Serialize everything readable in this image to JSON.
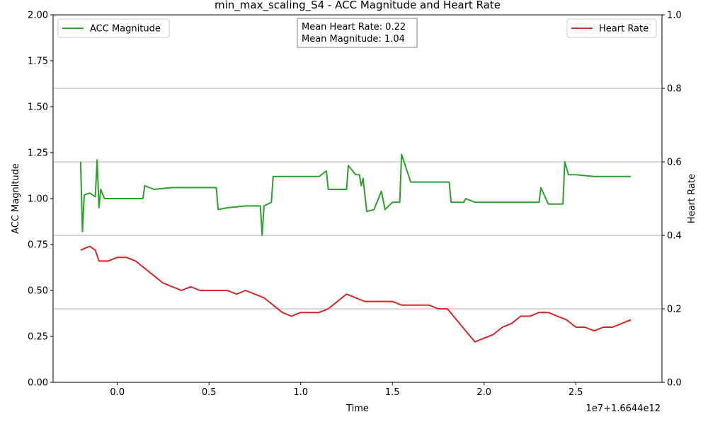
{
  "chart_data": {
    "type": "line",
    "title": "min_max_scaling_S4 - ACC Magnitude and Heart Rate",
    "xlabel": "Time",
    "x_offset_text": "1e7+1.6644e12",
    "ylabel_left": "ACC Magnitude",
    "ylabel_right": "Heart Rate",
    "xlim": [
      -0.35,
      2.97
    ],
    "ylim_left": [
      0.0,
      2.0
    ],
    "ylim_right": [
      0.0,
      1.0
    ],
    "x_ticks": [
      "0.0",
      "0.5",
      "1.0",
      "1.5",
      "2.0",
      "2.5"
    ],
    "y_ticks_left": [
      "0.00",
      "0.25",
      "0.50",
      "0.75",
      "1.00",
      "1.25",
      "1.50",
      "1.75",
      "2.00"
    ],
    "y_ticks_right": [
      "0.0",
      "0.2",
      "0.4",
      "0.6",
      "0.8",
      "1.0"
    ],
    "grid": "right-axis horizontal",
    "legend_left": "top-left",
    "legend_right": "top-right",
    "colors": {
      "acc": "#2ca02c",
      "hr": "#d62728"
    },
    "stats": {
      "mean_hr": "Mean Heart Rate: 0.22",
      "mean_mag": "Mean Magnitude: 1.04"
    },
    "series": [
      {
        "name": "ACC Magnitude",
        "axis": "left",
        "x": [
          -0.2,
          -0.19,
          -0.18,
          -0.15,
          -0.12,
          -0.11,
          -0.1,
          -0.09,
          -0.07,
          0.0,
          0.14,
          0.15,
          0.2,
          0.3,
          0.4,
          0.54,
          0.55,
          0.6,
          0.7,
          0.78,
          0.79,
          0.8,
          0.84,
          0.85,
          0.9,
          1.0,
          1.1,
          1.14,
          1.15,
          1.2,
          1.25,
          1.26,
          1.3,
          1.32,
          1.33,
          1.34,
          1.36,
          1.4,
          1.44,
          1.46,
          1.5,
          1.54,
          1.55,
          1.6,
          1.7,
          1.81,
          1.82,
          1.85,
          1.89,
          1.9,
          1.95,
          2.0,
          2.1,
          2.2,
          2.3,
          2.31,
          2.35,
          2.4,
          2.43,
          2.44,
          2.46,
          2.5,
          2.6,
          2.7,
          2.8
        ],
        "values": [
          1.2,
          0.82,
          1.02,
          1.03,
          1.01,
          1.21,
          0.95,
          1.05,
          1.0,
          1.0,
          1.0,
          1.07,
          1.05,
          1.06,
          1.06,
          1.06,
          0.94,
          0.95,
          0.96,
          0.96,
          0.8,
          0.96,
          0.98,
          1.12,
          1.12,
          1.12,
          1.12,
          1.15,
          1.05,
          1.05,
          1.05,
          1.18,
          1.13,
          1.13,
          1.07,
          1.11,
          0.93,
          0.94,
          1.04,
          0.94,
          0.98,
          0.98,
          1.24,
          1.09,
          1.09,
          1.09,
          0.98,
          0.98,
          0.98,
          1.0,
          0.98,
          0.98,
          0.98,
          0.98,
          0.98,
          1.06,
          0.97,
          0.97,
          0.97,
          1.2,
          1.13,
          1.13,
          1.12,
          1.12,
          1.12
        ]
      },
      {
        "name": "Heart Rate",
        "axis": "right",
        "x": [
          -0.2,
          -0.15,
          -0.12,
          -0.1,
          -0.05,
          0.0,
          0.05,
          0.1,
          0.15,
          0.2,
          0.25,
          0.3,
          0.35,
          0.4,
          0.45,
          0.5,
          0.55,
          0.6,
          0.65,
          0.7,
          0.75,
          0.8,
          0.85,
          0.9,
          0.95,
          1.0,
          1.05,
          1.1,
          1.15,
          1.2,
          1.25,
          1.3,
          1.35,
          1.4,
          1.45,
          1.5,
          1.55,
          1.6,
          1.65,
          1.7,
          1.75,
          1.8,
          1.85,
          1.9,
          1.95,
          2.0,
          2.05,
          2.1,
          2.15,
          2.2,
          2.25,
          2.3,
          2.35,
          2.4,
          2.45,
          2.5,
          2.55,
          2.6,
          2.65,
          2.7,
          2.75,
          2.8
        ],
        "values": [
          0.36,
          0.37,
          0.36,
          0.33,
          0.33,
          0.34,
          0.34,
          0.33,
          0.31,
          0.29,
          0.27,
          0.26,
          0.25,
          0.26,
          0.25,
          0.25,
          0.25,
          0.25,
          0.24,
          0.25,
          0.24,
          0.23,
          0.21,
          0.19,
          0.18,
          0.19,
          0.19,
          0.19,
          0.2,
          0.22,
          0.24,
          0.23,
          0.22,
          0.22,
          0.22,
          0.22,
          0.21,
          0.21,
          0.21,
          0.21,
          0.2,
          0.2,
          0.17,
          0.14,
          0.11,
          0.12,
          0.13,
          0.15,
          0.16,
          0.18,
          0.18,
          0.19,
          0.19,
          0.18,
          0.17,
          0.15,
          0.15,
          0.14,
          0.15,
          0.15,
          0.16,
          0.17
        ]
      }
    ]
  }
}
